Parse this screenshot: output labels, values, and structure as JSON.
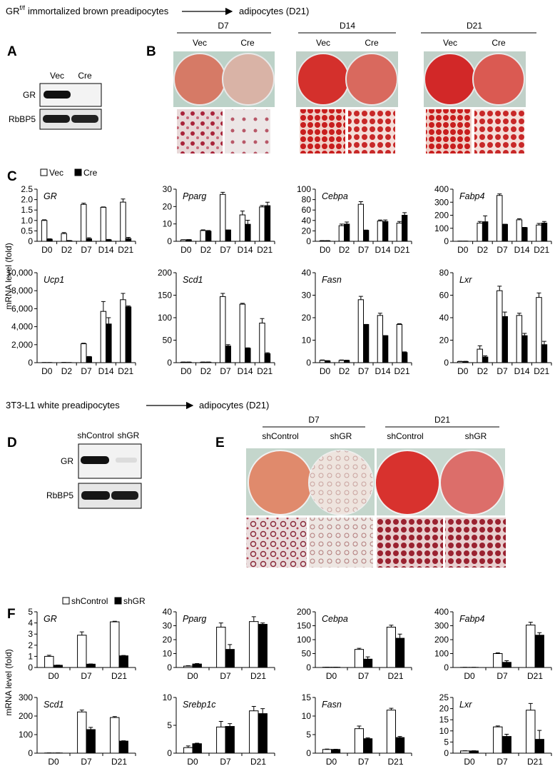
{
  "brown": {
    "title": {
      "prefix": "GR",
      "superscript": "f/f",
      "suffix": "immortalized brown preadipocytes",
      "target": "adipocytes (D21)"
    },
    "panel_a": {
      "letter": "A",
      "lanes": [
        "Vec",
        "Cre"
      ],
      "bands": [
        "GR",
        "RbBP5"
      ]
    },
    "panel_b": {
      "letter": "B",
      "groups": [
        {
          "day": "D7",
          "conditions": [
            "Vec",
            "Cre"
          ]
        },
        {
          "day": "D14",
          "conditions": [
            "Vec",
            "Cre"
          ]
        },
        {
          "day": "D21",
          "conditions": [
            "Vec",
            "Cre"
          ]
        }
      ]
    },
    "panel_c": {
      "letter": "C",
      "y_label": "mRNA level (fold)"
    }
  },
  "white": {
    "title": {
      "text": "3T3-L1 white preadipocytes",
      "target": "adipocytes (D21)"
    },
    "panel_d": {
      "letter": "D",
      "lanes": [
        "shControl",
        "shGR"
      ],
      "bands": [
        "GR",
        "RbBP5"
      ]
    },
    "panel_e": {
      "letter": "E",
      "groups": [
        {
          "day": "D7",
          "conditions": [
            "shControl",
            "shGR"
          ]
        },
        {
          "day": "D21",
          "conditions": [
            "shControl",
            "shGR"
          ]
        }
      ]
    },
    "panel_f": {
      "letter": "F",
      "y_label": "mRNA level (fold)"
    }
  },
  "chart_data": [
    {
      "type": "bar",
      "title": "GR",
      "categories": [
        "D0",
        "D2",
        "D7",
        "D14",
        "D21"
      ],
      "series": [
        {
          "name": "Vec",
          "color": "#ffffff",
          "values": [
            1.0,
            0.37,
            1.77,
            1.63,
            1.88
          ],
          "errors": [
            0.03,
            0.05,
            0.06,
            0.02,
            0.15
          ]
        },
        {
          "name": "Cre",
          "color": "#000000",
          "values": [
            0.1,
            0.03,
            0.12,
            0.07,
            0.13
          ],
          "errors": [
            0.02,
            0.01,
            0.05,
            0.02,
            0.06
          ]
        }
      ],
      "ylim": [
        0,
        2.5
      ],
      "yticks": [
        0,
        0.5,
        {
          "value": 1,
          "label": "1.0"
        },
        1.5,
        {
          "value": 2,
          "label": "2.0"
        },
        2.5
      ]
    },
    {
      "type": "bar",
      "title": "Pparg",
      "categories": [
        "D0",
        "D2",
        "D7",
        "D14",
        "D21"
      ],
      "series": [
        {
          "name": "Vec",
          "color": "#ffffff",
          "values": [
            0.8,
            6.2,
            27,
            15.2,
            19.8
          ],
          "errors": [
            0.1,
            0.4,
            1.2,
            2.2,
            0.8
          ]
        },
        {
          "name": "Cre",
          "color": "#000000",
          "values": [
            0.9,
            5.8,
            6.5,
            9.8,
            20.5
          ],
          "errors": [
            0.1,
            0.4,
            0,
            2.3,
            2.0
          ]
        }
      ],
      "ylim": [
        0,
        30
      ],
      "yticks": [
        0,
        10,
        20,
        30
      ]
    },
    {
      "type": "bar",
      "title": "Cebpa",
      "categories": [
        "D0",
        "D2",
        "D7",
        "D14",
        "D21"
      ],
      "series": [
        {
          "name": "Vec",
          "color": "#ffffff",
          "values": [
            1,
            30,
            71,
            39,
            35
          ],
          "errors": [
            0.3,
            3,
            5,
            2,
            3
          ]
        },
        {
          "name": "Cre",
          "color": "#000000",
          "values": [
            1,
            33,
            21,
            38,
            50
          ],
          "errors": [
            0.3,
            4,
            0.5,
            3,
            5
          ]
        }
      ],
      "ylim": [
        0,
        100
      ],
      "yticks": [
        0,
        20,
        40,
        60,
        80,
        100
      ]
    },
    {
      "type": "bar",
      "title": "Fabp4",
      "categories": [
        "D0",
        "D2",
        "D7",
        "D14",
        "D21"
      ],
      "series": [
        {
          "name": "Vec",
          "color": "#ffffff",
          "values": [
            1,
            140,
            352,
            165,
            125
          ],
          "errors": [
            0.5,
            12,
            12,
            8,
            12
          ]
        },
        {
          "name": "Cre",
          "color": "#000000",
          "values": [
            1,
            150,
            130,
            105,
            140
          ],
          "errors": [
            0.5,
            45,
            1,
            2,
            12
          ]
        }
      ],
      "ylim": [
        0,
        400
      ],
      "yticks": [
        0,
        100,
        200,
        300,
        400
      ]
    },
    {
      "type": "bar",
      "title": "Ucp1",
      "categories": [
        "D0",
        "D2",
        "D7",
        "D14",
        "D21"
      ],
      "series": [
        {
          "name": "Vec",
          "color": "#ffffff",
          "values": [
            10,
            20,
            2100,
            5700,
            7000
          ],
          "errors": [
            5,
            5,
            60,
            1100,
            700
          ]
        },
        {
          "name": "Cre",
          "color": "#000000",
          "values": [
            10,
            10,
            650,
            4300,
            6200
          ],
          "errors": [
            5,
            5,
            30,
            700,
            100
          ]
        }
      ],
      "ylim": [
        0,
        10000
      ],
      "yticks": [
        0,
        {
          "value": 2000,
          "label": "2,000"
        },
        {
          "value": 4000,
          "label": "4,000"
        },
        {
          "value": 6000,
          "label": "6,000"
        },
        {
          "value": 8000,
          "label": "8,000"
        },
        {
          "value": 10000,
          "label": "10,000"
        }
      ]
    },
    {
      "type": "bar",
      "title": "Scd1",
      "categories": [
        "D0",
        "D2",
        "D7",
        "D14",
        "D21"
      ],
      "series": [
        {
          "name": "Vec",
          "color": "#ffffff",
          "values": [
            1,
            1,
            147,
            130,
            88
          ],
          "errors": [
            0.3,
            0.3,
            7,
            2,
            10
          ]
        },
        {
          "name": "Cre",
          "color": "#000000",
          "values": [
            1,
            1,
            37,
            32,
            20
          ],
          "errors": [
            0.3,
            0.3,
            3,
            1,
            2
          ]
        }
      ],
      "ylim": [
        0,
        200
      ],
      "yticks": [
        0,
        50,
        100,
        150,
        200
      ]
    },
    {
      "type": "bar",
      "title": "Fasn",
      "categories": [
        "D0",
        "D2",
        "D7",
        "D14",
        "D21"
      ],
      "series": [
        {
          "name": "Vec",
          "color": "#ffffff",
          "values": [
            1,
            1,
            28,
            21,
            17
          ],
          "errors": [
            0.2,
            0.2,
            1.5,
            1,
            0.3
          ]
        },
        {
          "name": "Cre",
          "color": "#000000",
          "values": [
            0.8,
            1,
            17,
            12,
            4.5
          ],
          "errors": [
            0.1,
            0.1,
            0,
            0,
            0.3
          ]
        }
      ],
      "ylim": [
        0,
        40
      ],
      "yticks": [
        0,
        10,
        20,
        30,
        40
      ]
    },
    {
      "type": "bar",
      "title": "Lxr",
      "categories": [
        "D0",
        "D2",
        "D7",
        "D14",
        "D21"
      ],
      "series": [
        {
          "name": "Vec",
          "color": "#ffffff",
          "values": [
            1,
            12,
            64,
            42,
            58
          ],
          "errors": [
            0.2,
            3,
            4,
            2,
            4
          ]
        },
        {
          "name": "Cre",
          "color": "#000000",
          "values": [
            1,
            5,
            41,
            24,
            16
          ],
          "errors": [
            0.2,
            1,
            4,
            2,
            3
          ]
        }
      ],
      "ylim": [
        0,
        80
      ],
      "yticks": [
        0,
        20,
        40,
        60,
        80
      ]
    },
    {
      "type": "bar",
      "title": "GR",
      "categories": [
        "D0",
        "D7",
        "D21"
      ],
      "series": [
        {
          "name": "shControl",
          "color": "#ffffff",
          "values": [
            1.0,
            2.9,
            4.1
          ],
          "errors": [
            0.1,
            0.3,
            0.05
          ]
        },
        {
          "name": "shGR",
          "color": "#000000",
          "values": [
            0.2,
            0.3,
            1.05
          ],
          "errors": [
            0.02,
            0.02,
            0.03
          ]
        }
      ],
      "ylim": [
        0,
        5
      ],
      "yticks": [
        0,
        1,
        2,
        3,
        4,
        5
      ]
    },
    {
      "type": "bar",
      "title": "Pparg",
      "categories": [
        "D0",
        "D7",
        "D21"
      ],
      "series": [
        {
          "name": "shControl",
          "color": "#ffffff",
          "values": [
            1,
            29,
            33
          ],
          "errors": [
            0.3,
            3,
            3.5
          ]
        },
        {
          "name": "shGR",
          "color": "#000000",
          "values": [
            2.5,
            13,
            31
          ],
          "errors": [
            0.3,
            3.5,
            1
          ]
        }
      ],
      "ylim": [
        0,
        40
      ],
      "yticks": [
        0,
        10,
        20,
        30,
        40
      ]
    },
    {
      "type": "bar",
      "title": "Cebpa",
      "categories": [
        "D0",
        "D7",
        "D21"
      ],
      "series": [
        {
          "name": "shControl",
          "color": "#ffffff",
          "values": [
            1,
            65,
            145
          ],
          "errors": [
            0.3,
            4,
            7
          ]
        },
        {
          "name": "shGR",
          "color": "#000000",
          "values": [
            1,
            30,
            105
          ],
          "errors": [
            0.3,
            8,
            15
          ]
        }
      ],
      "ylim": [
        0,
        200
      ],
      "yticks": [
        0,
        50,
        100,
        150,
        200
      ]
    },
    {
      "type": "bar",
      "title": "Fabp4",
      "categories": [
        "D0",
        "D7",
        "D21"
      ],
      "series": [
        {
          "name": "shControl",
          "color": "#ffffff",
          "values": [
            1,
            100,
            305
          ],
          "errors": [
            0.5,
            5,
            20
          ]
        },
        {
          "name": "shGR",
          "color": "#000000",
          "values": [
            1,
            37,
            232
          ],
          "errors": [
            0.5,
            12,
            18
          ]
        }
      ],
      "ylim": [
        0,
        400
      ],
      "yticks": [
        0,
        100,
        200,
        300,
        400
      ]
    },
    {
      "type": "bar",
      "title": "Scd1",
      "categories": [
        "D0",
        "D7",
        "D21"
      ],
      "series": [
        {
          "name": "shControl",
          "color": "#ffffff",
          "values": [
            1,
            222,
            192
          ],
          "errors": [
            0.3,
            10,
            5
          ]
        },
        {
          "name": "shGR",
          "color": "#000000",
          "values": [
            1,
            127,
            65
          ],
          "errors": [
            0.3,
            12,
            2
          ]
        }
      ],
      "ylim": [
        0,
        300
      ],
      "yticks": [
        0,
        100,
        200,
        300
      ]
    },
    {
      "type": "bar",
      "title": "Srebp1c",
      "categories": [
        "D0",
        "D7",
        "D21"
      ],
      "series": [
        {
          "name": "shControl",
          "color": "#ffffff",
          "values": [
            1,
            4.7,
            7.6
          ],
          "errors": [
            0.3,
            1,
            0.8
          ]
        },
        {
          "name": "shGR",
          "color": "#000000",
          "values": [
            1.7,
            4.8,
            7.1
          ],
          "errors": [
            0.1,
            0.5,
            0.9
          ]
        }
      ],
      "ylim": [
        0,
        10
      ],
      "yticks": [
        0,
        5,
        10
      ]
    },
    {
      "type": "bar",
      "title": "Fasn",
      "categories": [
        "D0",
        "D7",
        "D21"
      ],
      "series": [
        {
          "name": "shControl",
          "color": "#ffffff",
          "values": [
            1,
            6.6,
            11.6
          ],
          "errors": [
            0.1,
            0.7,
            0.5
          ]
        },
        {
          "name": "shGR",
          "color": "#000000",
          "values": [
            1,
            3.9,
            4.2
          ],
          "errors": [
            0.05,
            0.2,
            0.3
          ]
        }
      ],
      "ylim": [
        0,
        15
      ],
      "yticks": [
        0,
        5,
        10,
        15
      ]
    },
    {
      "type": "bar",
      "title": "Lxr",
      "categories": [
        "D0",
        "D7",
        "D21"
      ],
      "series": [
        {
          "name": "shControl",
          "color": "#ffffff",
          "values": [
            1,
            11.8,
            19.3
          ],
          "errors": [
            0.1,
            0.4,
            3
          ]
        },
        {
          "name": "shGR",
          "color": "#000000",
          "values": [
            1,
            7.5,
            6.2
          ],
          "errors": [
            0.1,
            1,
            4
          ]
        }
      ],
      "ylim": [
        0,
        25
      ],
      "yticks": [
        0,
        5,
        10,
        15,
        20,
        25
      ]
    }
  ]
}
